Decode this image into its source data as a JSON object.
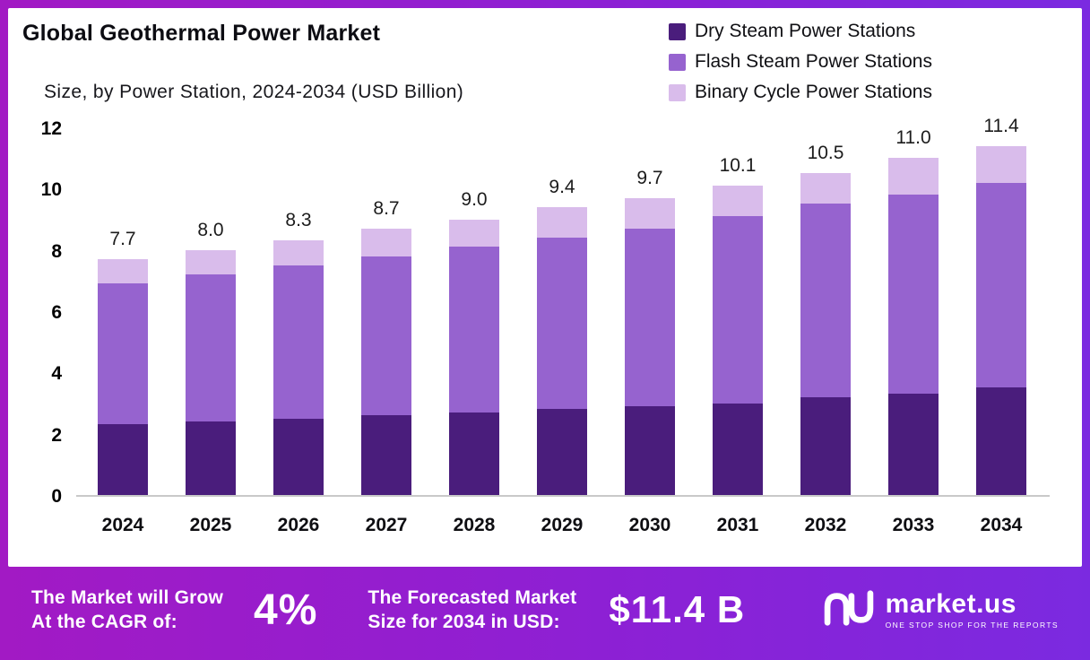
{
  "header": {
    "title": "Global Geothermal Power Market",
    "subtitle": "Size, by Power Station, 2024-2034 (USD Billion)"
  },
  "chart_data": {
    "type": "bar",
    "stacked": true,
    "title": "Global Geothermal Power Market Size, by Power Station, 2024-2034 (USD Billion)",
    "categories": [
      "2024",
      "2025",
      "2026",
      "2027",
      "2028",
      "2029",
      "2030",
      "2031",
      "2032",
      "2033",
      "2034"
    ],
    "series": [
      {
        "name": "Dry Steam Power Stations",
        "color": "#4a1d7c",
        "values": [
          2.3,
          2.4,
          2.5,
          2.6,
          2.7,
          2.8,
          2.9,
          3.0,
          3.2,
          3.3,
          3.5
        ]
      },
      {
        "name": "Flash Steam Power Stations",
        "color": "#9663cf",
        "values": [
          4.6,
          4.8,
          5.0,
          5.2,
          5.4,
          5.6,
          5.8,
          6.1,
          6.3,
          6.5,
          6.7
        ]
      },
      {
        "name": "Binary Cycle Power Stations",
        "color": "#d9bceb",
        "values": [
          0.8,
          0.8,
          0.8,
          0.9,
          0.9,
          1.0,
          1.0,
          1.0,
          1.0,
          1.2,
          1.2
        ]
      }
    ],
    "totals": [
      7.7,
      8.0,
      8.3,
      8.7,
      9.0,
      9.4,
      9.7,
      10.1,
      10.5,
      11.0,
      11.4
    ],
    "ylim": [
      0,
      12
    ],
    "yticks": [
      0,
      2,
      4,
      6,
      8,
      10,
      12
    ],
    "xlabel": "",
    "ylabel": "",
    "grid": false,
    "legend_position": "top-right"
  },
  "footer": {
    "cagr_label_line1": "The Market will Grow",
    "cagr_label_line2": "At the CAGR of:",
    "cagr_value": "4%",
    "forecast_label_line1": "The Forecasted Market",
    "forecast_label_line2": "Size for 2034 in USD:",
    "forecast_value": "$11.4 B",
    "brand": "market.us",
    "brand_tagline": "ONE STOP SHOP FOR THE REPORTS"
  },
  "colors": {
    "frame_gradient_left": "#a21ac4",
    "frame_gradient_right": "#7b2ae0",
    "baseline": "#c9c9c9",
    "text": "#0c0c12"
  }
}
